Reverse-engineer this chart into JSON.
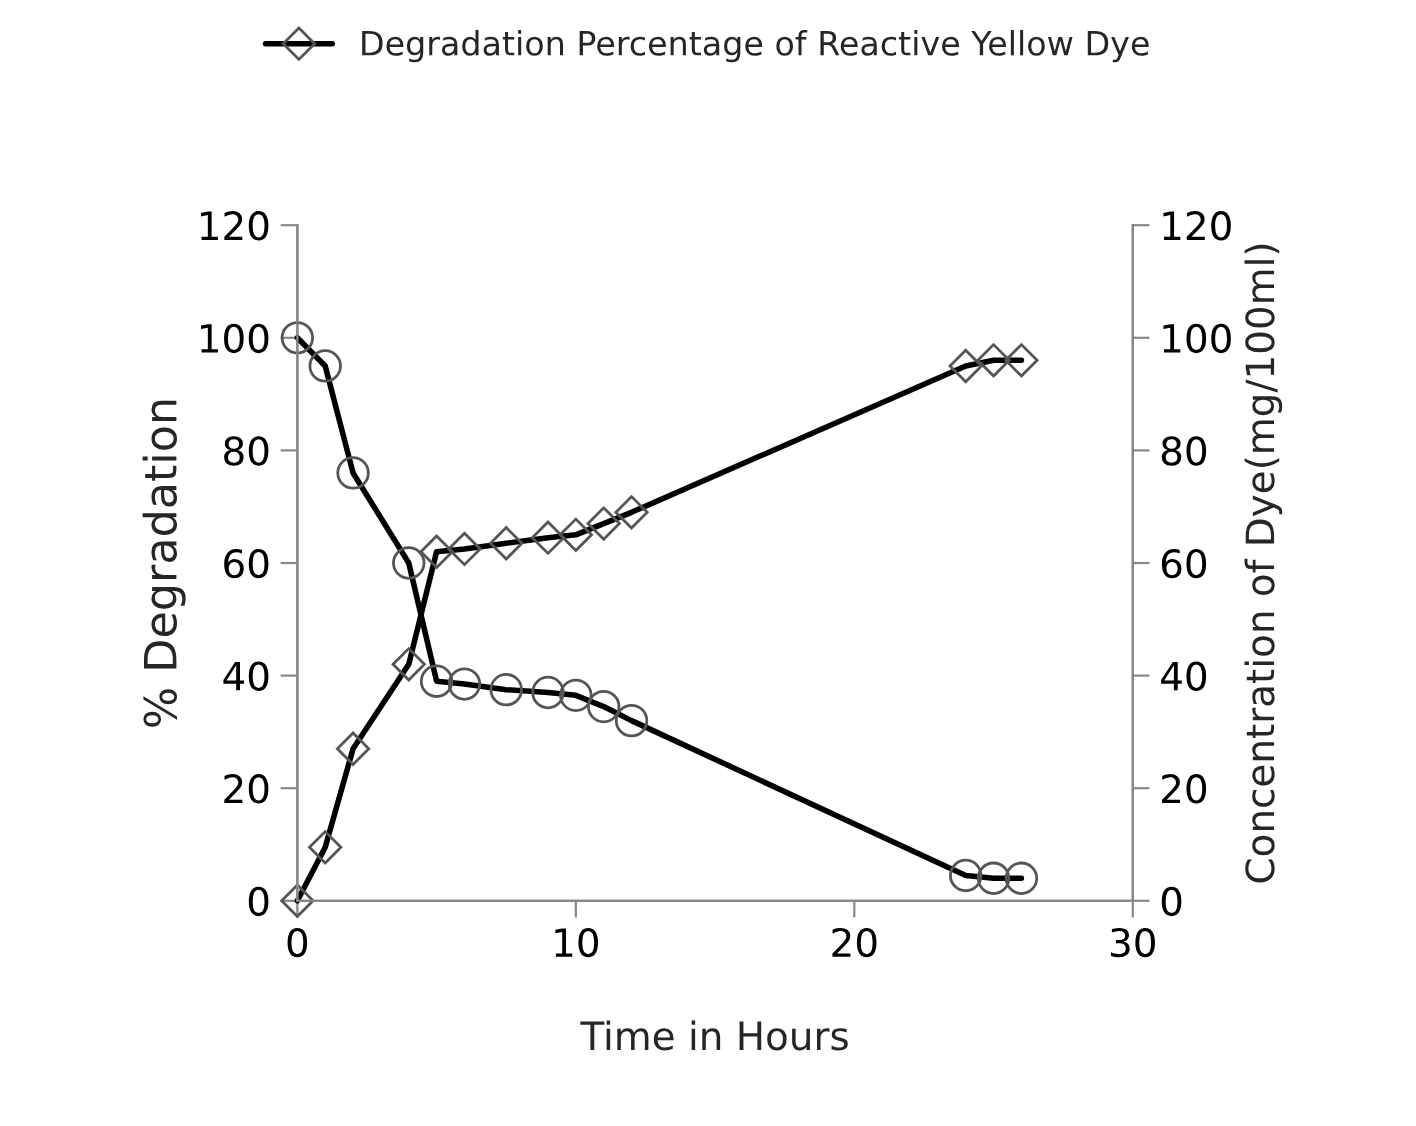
{
  "chart_data": {
    "type": "line",
    "xlabel": "Time in Hours",
    "ylabel": "% Degradation",
    "y2label": "Concentration of Dye(mg/100ml)",
    "series": [
      {
        "name": "Degradation Percentage of Reactive Yellow Dye",
        "color": "#000000",
        "marker": "diamond",
        "x": [
          0,
          1,
          2,
          4,
          5,
          6,
          7.5,
          9,
          10,
          11,
          12,
          24,
          25,
          26
        ],
        "values": [
          0,
          9.5,
          27,
          42,
          62,
          62.5,
          63.5,
          64.5,
          65,
          67,
          69,
          95,
          96,
          96
        ]
      },
      {
        "color": "#000000",
        "marker": "circle",
        "axis": "y2",
        "x": [
          0,
          1,
          2,
          4,
          5,
          6,
          7.5,
          9,
          10,
          11,
          12,
          24,
          25,
          26
        ],
        "values": [
          100,
          95,
          76,
          60,
          39,
          38.5,
          37.5,
          37,
          36.5,
          34.5,
          32,
          4.5,
          4,
          4
        ]
      }
    ],
    "xlim": [
      0,
      30
    ],
    "xticks": [
      0,
      10,
      20,
      30
    ],
    "ylim": [
      0,
      120
    ],
    "yticks": [
      0,
      20,
      40,
      60,
      80,
      100,
      120
    ],
    "y2lim": [
      0,
      120
    ],
    "y2ticks": [
      0,
      20,
      40,
      60,
      80,
      100,
      120
    ],
    "legend": "top",
    "grid": false,
    "line_style": "solid"
  }
}
